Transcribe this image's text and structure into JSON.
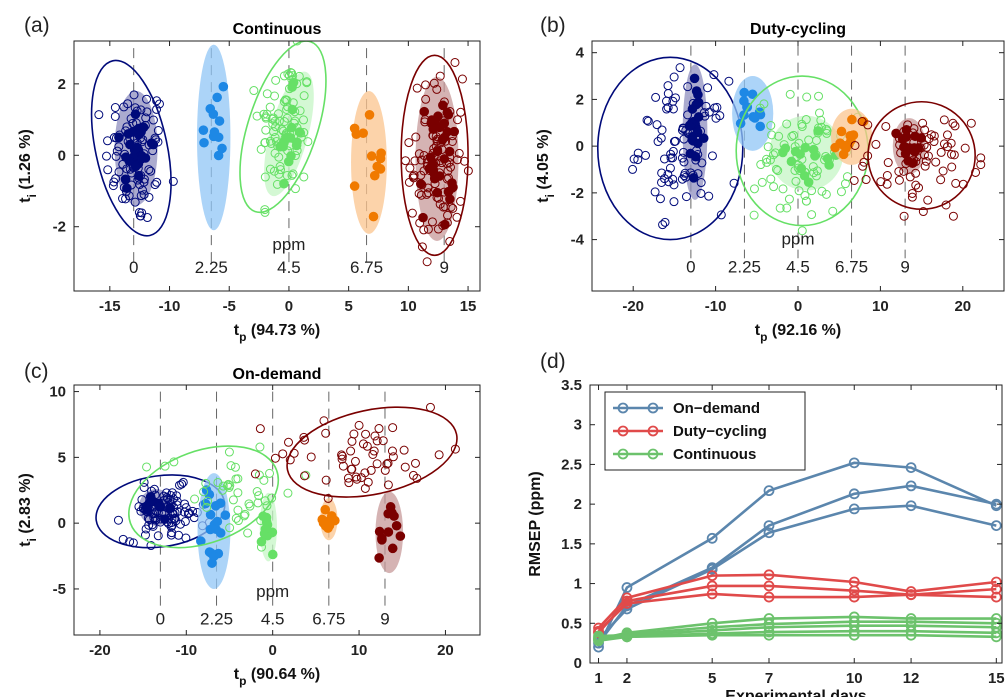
{
  "chart_data": [
    {
      "id": "a",
      "panel_label": "(a)",
      "type": "scatter",
      "title": "Continuous",
      "xlabel_main": "t",
      "xlabel_sub": "p",
      "xlabel_pct": " (94.73 %)",
      "ylabel_main": "t",
      "ylabel_sub": "i",
      "ylabel_pct": " (1.26 %)",
      "xlim": [
        -18,
        16
      ],
      "ylim": [
        -3.8,
        3.2
      ],
      "xticks": [
        -15,
        -10,
        -5,
        0,
        5,
        10,
        15
      ],
      "yticks": [
        -2,
        0,
        2
      ],
      "ppm_label": "ppm",
      "level_labels": [
        "0",
        "2.25",
        "4.5",
        "6.75",
        "9"
      ],
      "level_x": [
        -13.0,
        -6.5,
        0,
        6.5,
        13.0
      ],
      "level_label_y": -3.3,
      "ppm_y": -2.65,
      "dash_range": [
        -3.0,
        3.0
      ],
      "groups": [
        {
          "color": "#000a7a",
          "shade": "#8f8fbf",
          "cx": -12.8,
          "cy": 0.0,
          "sx": 1.3,
          "sy": 1.0,
          "n": 90,
          "filled": 30,
          "ellipse": {
            "cx": -13.2,
            "cy": 0.2,
            "rx": 3.0,
            "ry": 2.5,
            "rot": -12
          },
          "shaded": {
            "cx": -12.8,
            "cy": 0.2,
            "rx": 1.8,
            "ry": 1.6,
            "rot": 0
          }
        },
        {
          "color": "#1e88e5",
          "shade": "#90c5f5",
          "cx": -6.0,
          "cy": 0.3,
          "sx": 0.7,
          "sy": 1.3,
          "n": 0,
          "filled": 12,
          "shaded": {
            "cx": -6.3,
            "cy": 0.5,
            "rx": 1.4,
            "ry": 2.6,
            "rot": 0
          }
        },
        {
          "color": "#66e066",
          "shade": "#c5f5c5",
          "cx": -0.3,
          "cy": 0.8,
          "sx": 1.1,
          "sy": 1.0,
          "n": 90,
          "filled": 15,
          "ellipse": {
            "cx": -0.5,
            "cy": 0.8,
            "rx": 2.9,
            "ry": 2.5,
            "rot": 18
          },
          "shaded": {
            "cx": 0.0,
            "cy": 0.6,
            "rx": 1.6,
            "ry": 1.8,
            "rot": 15
          }
        },
        {
          "color": "#f07a00",
          "shade": "#fbc48e",
          "cx": 6.8,
          "cy": 0.0,
          "sx": 0.8,
          "sy": 1.0,
          "n": 0,
          "filled": 12,
          "shaded": {
            "cx": 6.7,
            "cy": -0.2,
            "rx": 1.5,
            "ry": 2.0,
            "rot": 0
          }
        },
        {
          "color": "#7a0000",
          "shade": "#c79a9a",
          "cx": 12.4,
          "cy": -0.2,
          "sx": 1.1,
          "sy": 1.2,
          "n": 100,
          "filled": 35,
          "ellipse": {
            "cx": 12.2,
            "cy": 0.0,
            "rx": 2.8,
            "ry": 2.8,
            "rot": 0
          },
          "shaded": {
            "cx": 12.4,
            "cy": -0.1,
            "rx": 1.8,
            "ry": 2.3,
            "rot": 0
          }
        }
      ]
    },
    {
      "id": "b",
      "panel_label": "(b)",
      "type": "scatter",
      "title": "Duty-cycling",
      "xlabel_main": "t",
      "xlabel_sub": "p",
      "xlabel_pct": " (92.16 %)",
      "ylabel_main": "t",
      "ylabel_sub": "i",
      "ylabel_pct": " (4.05 %)",
      "xlim": [
        -25,
        25
      ],
      "ylim": [
        -6.2,
        4.5
      ],
      "xticks": [
        -20,
        -10,
        0,
        10,
        20
      ],
      "yticks": [
        -4,
        -2,
        0,
        2,
        4
      ],
      "ppm_label": "ppm",
      "level_labels": [
        "0",
        "2.25",
        "4.5",
        "6.75",
        "9"
      ],
      "level_x": [
        -13.0,
        -6.5,
        0,
        6.5,
        13.0
      ],
      "level_label_y": -5.4,
      "ppm_y": -4.2,
      "dash_range": [
        -4.8,
        4.3
      ],
      "groups": [
        {
          "color": "#000a7a",
          "shade": "#8f8fbf",
          "cx": -14.0,
          "cy": 0.0,
          "sx": 2.6,
          "sy": 1.4,
          "n": 90,
          "filled": 20,
          "ellipse": {
            "cx": -15.5,
            "cy": -0.1,
            "rx": 8.8,
            "ry": 3.9,
            "rot": 0
          },
          "shaded": {
            "cx": -12.5,
            "cy": 0.6,
            "rx": 1.5,
            "ry": 2.9,
            "rot": 0
          }
        },
        {
          "color": "#1e88e5",
          "shade": "#90c5f5",
          "cx": -5.5,
          "cy": 1.3,
          "sx": 1.2,
          "sy": 0.6,
          "n": 0,
          "filled": 12,
          "shaded": {
            "cx": -5.5,
            "cy": 1.4,
            "rx": 2.5,
            "ry": 1.6,
            "rot": 0
          }
        },
        {
          "color": "#66e066",
          "shade": "#c5f5c5",
          "cx": 0.5,
          "cy": -0.5,
          "sx": 2.8,
          "sy": 1.3,
          "n": 80,
          "filled": 15,
          "ellipse": {
            "cx": 0.5,
            "cy": -0.2,
            "rx": 8.0,
            "ry": 3.2,
            "rot": 0
          },
          "shaded": {
            "cx": 1.0,
            "cy": -0.3,
            "rx": 4.5,
            "ry": 1.6,
            "rot": 0
          }
        },
        {
          "color": "#f07a00",
          "shade": "#fbc48e",
          "cx": 6.5,
          "cy": 0.0,
          "sx": 1.3,
          "sy": 0.5,
          "n": 0,
          "filled": 12,
          "shaded": {
            "cx": 6.5,
            "cy": 0.4,
            "rx": 2.5,
            "ry": 1.2,
            "rot": 0
          }
        },
        {
          "color": "#7a0000",
          "shade": "#c79a9a",
          "cx": 14.5,
          "cy": -0.6,
          "sx": 3.2,
          "sy": 1.0,
          "n": 80,
          "filled": 15,
          "ellipse": {
            "cx": 15.0,
            "cy": -0.4,
            "rx": 6.5,
            "ry": 2.3,
            "rot": 0
          },
          "shaded": {
            "cx": 13.5,
            "cy": 0.0,
            "rx": 2.0,
            "ry": 1.2,
            "rot": 0
          }
        }
      ]
    },
    {
      "id": "c",
      "panel_label": "(c)",
      "type": "scatter",
      "title": "On-demand",
      "xlabel_main": "t",
      "xlabel_sub": "p",
      "xlabel_pct": " (90.64 %)",
      "ylabel_main": "t",
      "ylabel_sub": "i",
      "ylabel_pct": " (2.83 %)",
      "xlim": [
        -23,
        24
      ],
      "ylim": [
        -8.5,
        10.5
      ],
      "xticks": [
        -20,
        -10,
        0,
        10,
        20
      ],
      "yticks": [
        -5,
        0,
        5,
        10
      ],
      "ppm_label": "ppm",
      "level_labels": [
        "0",
        "2.25",
        "4.5",
        "6.75",
        "9"
      ],
      "level_x": [
        -13.0,
        -6.5,
        0,
        6.5,
        13.0
      ],
      "level_label_y": -7.7,
      "ppm_y": -5.6,
      "dash_range": [
        -6.5,
        10.0
      ],
      "groups": [
        {
          "color": "#000a7a",
          "shade": "#8f8fbf",
          "cx": -12.5,
          "cy": 0.7,
          "sx": 2.3,
          "sy": 1.0,
          "n": 90,
          "filled": 10,
          "ellipse": {
            "cx": -13.0,
            "cy": 0.9,
            "rx": 7.5,
            "ry": 2.7,
            "rot": -8
          },
          "shaded": {
            "cx": -13.5,
            "cy": 1.2,
            "rx": 2.0,
            "ry": 1.4,
            "rot": 0
          }
        },
        {
          "color": "#1e88e5",
          "shade": "#90c5f5",
          "cx": -6.5,
          "cy": 0.8,
          "sx": 1.0,
          "sy": 2.0,
          "n": 0,
          "filled": 18,
          "shaded": {
            "cx": -6.8,
            "cy": -0.6,
            "rx": 1.9,
            "ry": 4.4,
            "rot": 0
          }
        },
        {
          "color": "#66e066",
          "shade": "#c5f5c5",
          "cx": -5.0,
          "cy": 2.5,
          "sx": 4.0,
          "sy": 1.8,
          "n": 45,
          "filled": 10,
          "ellipse": {
            "cx": -8.0,
            "cy": 2.0,
            "rx": 9.0,
            "ry": 3.5,
            "rot": -20
          },
          "shaded": {
            "cx": -0.5,
            "cy": -0.3,
            "rx": 1.0,
            "ry": 2.6,
            "rot": 0
          }
        },
        {
          "color": "#f07a00",
          "shade": "#fbc48e",
          "cx": 6.5,
          "cy": 0.3,
          "sx": 0.7,
          "sy": 0.6,
          "n": 0,
          "filled": 10,
          "shaded": {
            "cx": 6.5,
            "cy": 0.3,
            "rx": 1.0,
            "ry": 1.6,
            "rot": 0
          }
        },
        {
          "color": "#7a0000",
          "shade": "#c79a9a",
          "cx": 10.0,
          "cy": 5.2,
          "sx": 5.0,
          "sy": 1.5,
          "n": 60,
          "filled": 12,
          "ellipse": {
            "cx": 11.5,
            "cy": 5.4,
            "rx": 10.0,
            "ry": 3.2,
            "rot": -12
          },
          "shaded": {
            "cx": 13.5,
            "cy": -0.7,
            "rx": 1.6,
            "ry": 3.1,
            "rot": 0
          }
        }
      ]
    },
    {
      "id": "d",
      "panel_label": "(d)",
      "type": "line",
      "xlabel": "Experimental days",
      "ylabel": "RMSEP (ppm)",
      "xlim": [
        0.7,
        15.2
      ],
      "ylim": [
        0,
        3.5
      ],
      "xticks": [
        1,
        2,
        5,
        7,
        10,
        12,
        15
      ],
      "yticks": [
        0,
        0.5,
        1,
        1.5,
        2,
        2.5,
        3,
        3.5
      ],
      "x": [
        1,
        2,
        5,
        7,
        10,
        12,
        15
      ],
      "legend": [
        "On−demand",
        "Duty−cycling",
        "Continuous"
      ],
      "legend_colors": [
        "#5b86ad",
        "#e04a4a",
        "#6cc26c"
      ],
      "series": [
        {
          "group": 0,
          "values": [
            0.2,
            0.95,
            1.57,
            2.17,
            2.52,
            2.46,
            1.98
          ]
        },
        {
          "group": 0,
          "values": [
            0.25,
            0.72,
            1.2,
            1.73,
            2.13,
            2.23,
            2.0
          ]
        },
        {
          "group": 0,
          "values": [
            0.3,
            0.68,
            1.18,
            1.64,
            1.94,
            1.98,
            1.73
          ]
        },
        {
          "group": 1,
          "values": [
            0.44,
            0.82,
            1.1,
            1.11,
            1.02,
            0.9,
            1.02
          ]
        },
        {
          "group": 1,
          "values": [
            0.38,
            0.78,
            0.97,
            0.97,
            0.91,
            0.86,
            0.93
          ]
        },
        {
          "group": 1,
          "values": [
            0.4,
            0.75,
            0.87,
            0.83,
            0.83,
            0.86,
            0.83
          ]
        },
        {
          "group": 2,
          "values": [
            0.3,
            0.38,
            0.5,
            0.56,
            0.58,
            0.56,
            0.56
          ]
        },
        {
          "group": 2,
          "values": [
            0.32,
            0.36,
            0.45,
            0.49,
            0.52,
            0.52,
            0.5
          ]
        },
        {
          "group": 2,
          "values": [
            0.34,
            0.35,
            0.41,
            0.45,
            0.47,
            0.47,
            0.45
          ]
        },
        {
          "group": 2,
          "values": [
            0.28,
            0.33,
            0.37,
            0.39,
            0.4,
            0.4,
            0.38
          ]
        },
        {
          "group": 2,
          "values": [
            0.3,
            0.33,
            0.35,
            0.35,
            0.35,
            0.35,
            0.33
          ]
        }
      ]
    }
  ]
}
